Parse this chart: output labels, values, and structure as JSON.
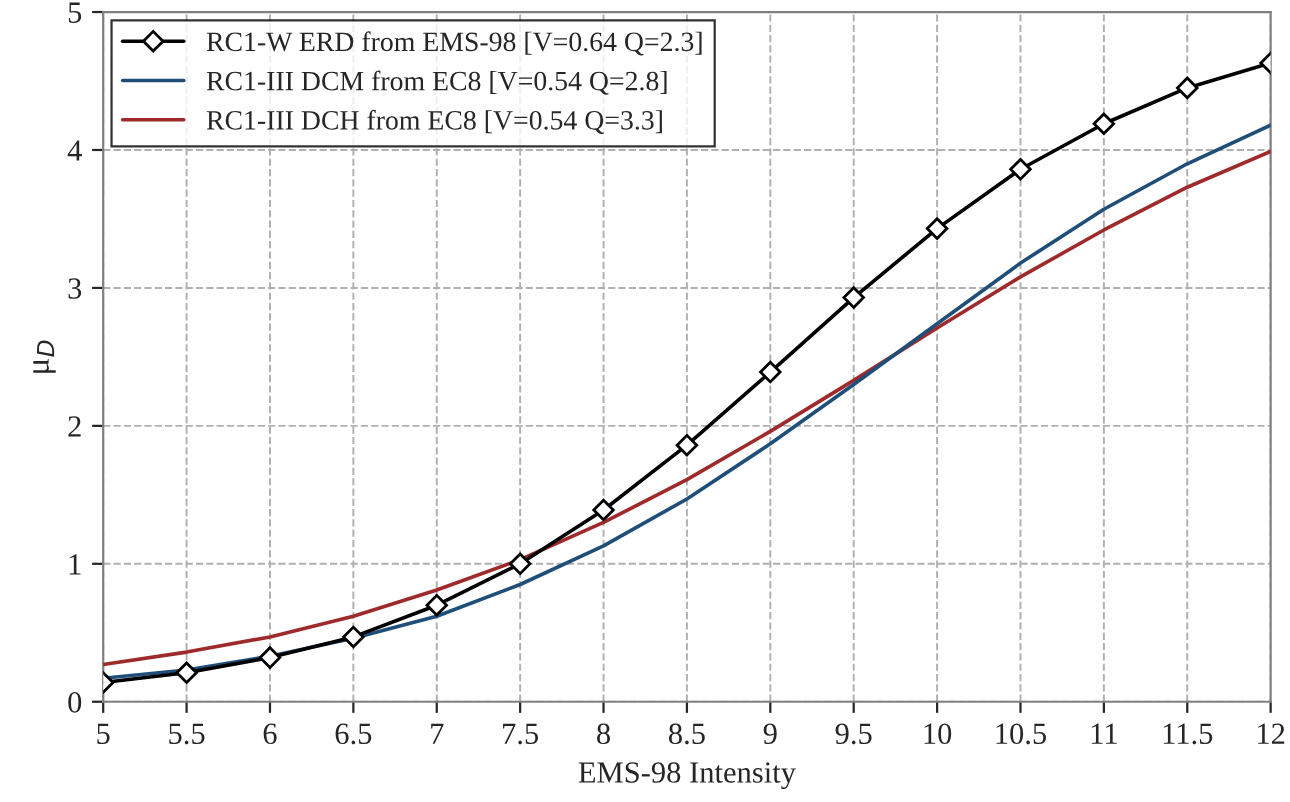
{
  "chart_data": {
    "type": "line",
    "xlabel": "EMS-98 Intensity",
    "ylabel": "μ$_{D}$",
    "x": [
      5,
      5.5,
      6,
      6.5,
      7,
      7.5,
      8,
      8.5,
      9,
      9.5,
      10,
      10.5,
      11,
      11.5,
      12
    ],
    "series": [
      {
        "name": "RC1-W ERD from EMS-98 [V=0.64 Q=2.3]",
        "color": "#000000",
        "marker": "diamond",
        "values": [
          0.14,
          0.21,
          0.32,
          0.47,
          0.7,
          1.0,
          1.39,
          1.86,
          2.39,
          2.93,
          3.43,
          3.86,
          4.19,
          4.45,
          4.63
        ]
      },
      {
        "name": "RC1-III DCM from EC8 [V=0.54 Q=2.8]",
        "color": "#1f4e79",
        "marker": "none",
        "values": [
          0.17,
          0.23,
          0.33,
          0.46,
          0.62,
          0.85,
          1.13,
          1.47,
          1.87,
          2.3,
          2.74,
          3.18,
          3.57,
          3.9,
          4.18
        ]
      },
      {
        "name": "RC1-III DCH from EC8 [V=0.54 Q=3.3]",
        "color": "#9e2a2b",
        "marker": "none",
        "values": [
          0.27,
          0.36,
          0.47,
          0.62,
          0.81,
          1.03,
          1.3,
          1.61,
          1.96,
          2.33,
          2.71,
          3.08,
          3.42,
          3.73,
          3.99
        ]
      }
    ],
    "xlim": [
      5,
      12
    ],
    "xticks": [
      5,
      5.5,
      6,
      6.5,
      7,
      7.5,
      8,
      8.5,
      9,
      9.5,
      10,
      10.5,
      11,
      11.5,
      12
    ],
    "ylim": [
      0,
      5
    ],
    "yticks": [
      0,
      1,
      2,
      3,
      4,
      5
    ],
    "grid": true,
    "legend": "top left",
    "line_style": "solid"
  }
}
